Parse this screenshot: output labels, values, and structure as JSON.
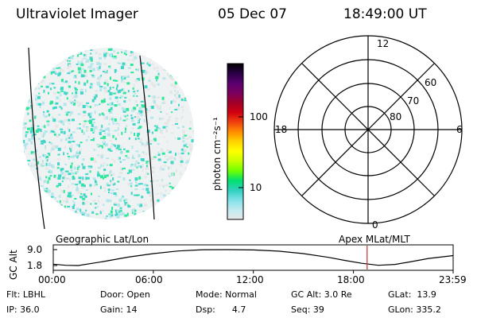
{
  "header": {
    "instrument": "Ultraviolet Imager",
    "date": "05 Dec 07",
    "time": "18:49:00 UT"
  },
  "colors": {
    "speckle_primary": "#40d7c8",
    "speckle_light": "#b4e6ec",
    "speckle_grey": "#e6e6e6",
    "speckle_green": "#2ee89a",
    "marker": "#c83232"
  },
  "colorbar": {
    "unit_label": "photon cm⁻²s⁻¹",
    "ticks": [
      "100",
      "10"
    ],
    "stops": [
      "#000000",
      "#2a0046",
      "#5a0070",
      "#7a0060",
      "#a0002a",
      "#d00010",
      "#f04010",
      "#ff8c00",
      "#ffd200",
      "#ffff00",
      "#c8ff00",
      "#70ff00",
      "#00e070",
      "#30d0c0",
      "#80e0e8",
      "#c0eaf0",
      "#e8e8e8"
    ]
  },
  "polar_plot": {
    "lat_labels": [
      "80",
      "70",
      "60"
    ],
    "mlt_labels": {
      "top": "12",
      "left": "18",
      "right": "6",
      "bottom": "0"
    }
  },
  "timeline": {
    "left_caption": "Geographic Lat/Lon",
    "right_caption": "Apex MLat/MLT",
    "ylabel": "GC Alt",
    "ytick_labels": [
      "9.0",
      "1.8"
    ],
    "xtick_labels": [
      "00:00",
      "06:00",
      "12:00",
      "18:00",
      "23:59"
    ]
  },
  "chart_data": {
    "type": "line",
    "ylabel": "GC Alt",
    "ylim": [
      1.8,
      9.0
    ],
    "x_hours": [
      0,
      0.75,
      1.5,
      3,
      4.5,
      6,
      7.5,
      9,
      10.5,
      12,
      13.5,
      15,
      16.5,
      17.5,
      18.5,
      19.5,
      20.5,
      21.5,
      22.5,
      23.98
    ],
    "y_alt": [
      2.4,
      1.9,
      1.8,
      3.6,
      5.6,
      7.2,
      8.4,
      8.95,
      9.0,
      8.85,
      8.3,
      7.2,
      5.5,
      4.1,
      2.8,
      1.9,
      2.3,
      3.6,
      5.0,
      6.3
    ],
    "current_time_hours": 18.82
  },
  "info": {
    "col1": [
      "Flt: LBHL",
      "IP: 36.0"
    ],
    "col2": [
      "Door: Open",
      "Gain: 14"
    ],
    "col3": [
      "Mode: Normal",
      "Dsp:      4.7"
    ],
    "col4": [
      "GC Alt: 3.0 Re",
      "Seq: 39"
    ],
    "col5": [
      "GLat:  13.9",
      "GLon: 335.2"
    ]
  }
}
